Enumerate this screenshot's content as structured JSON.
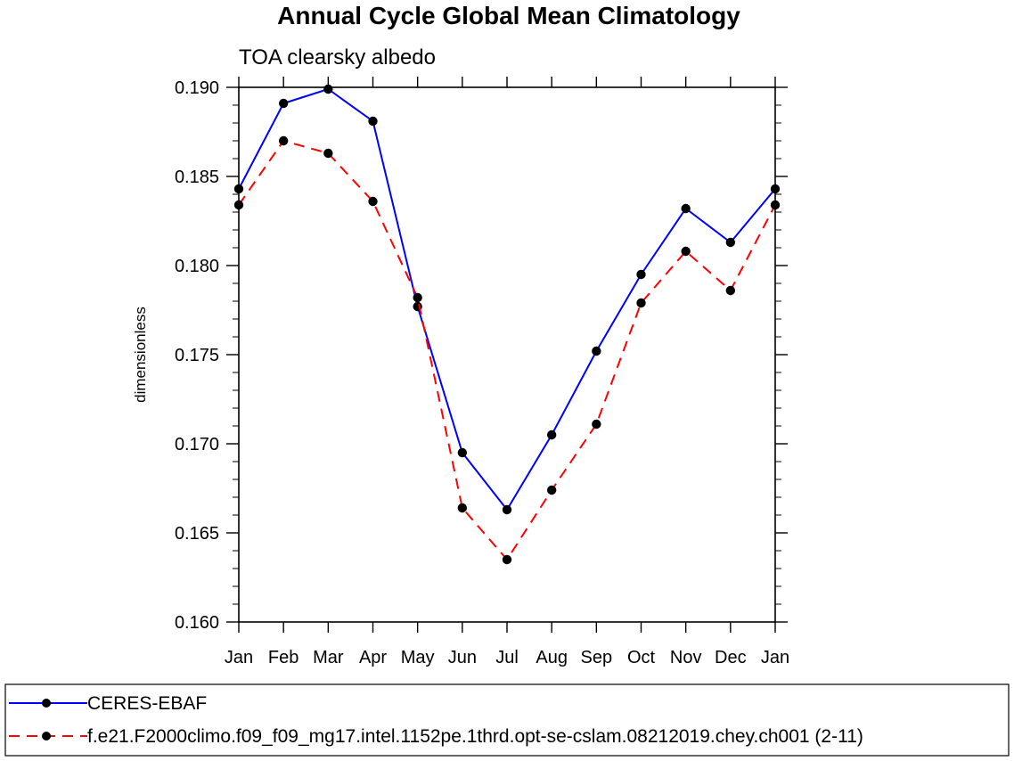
{
  "chart_data": {
    "type": "line",
    "title": "Annual Cycle Global Mean Climatology",
    "subtitle": "TOA clearsky albedo",
    "ylabel": "dimensionless",
    "xlabel": "",
    "categories": [
      "Jan",
      "Feb",
      "Mar",
      "Apr",
      "May",
      "Jun",
      "Jul",
      "Aug",
      "Sep",
      "Oct",
      "Nov",
      "Dec",
      "Jan"
    ],
    "ylim": [
      0.16,
      0.19
    ],
    "yticks": [
      "0.160",
      "0.165",
      "0.170",
      "0.175",
      "0.180",
      "0.185",
      "0.190"
    ],
    "grid": false,
    "legend_position": "bottom",
    "series": [
      {
        "name": "CERES-EBAF",
        "color": "#0000ff",
        "style": "solid",
        "values": [
          0.1843,
          0.1891,
          0.1899,
          0.1881,
          0.1777,
          0.1695,
          0.1663,
          0.1705,
          0.1752,
          0.1795,
          0.1832,
          0.1813,
          0.1843
        ]
      },
      {
        "name": "f.e21.F2000climo.f09_f09_mg17.intel.1152pe.1thrd.opt-se-cslam.08212019.chey.ch001 (2-11)",
        "color": "#ff0000",
        "style": "dashed",
        "values": [
          0.1834,
          0.187,
          0.1863,
          0.1836,
          0.1782,
          0.1664,
          0.1635,
          0.1674,
          0.1711,
          0.1779,
          0.1808,
          0.1786,
          0.1834
        ]
      }
    ]
  }
}
